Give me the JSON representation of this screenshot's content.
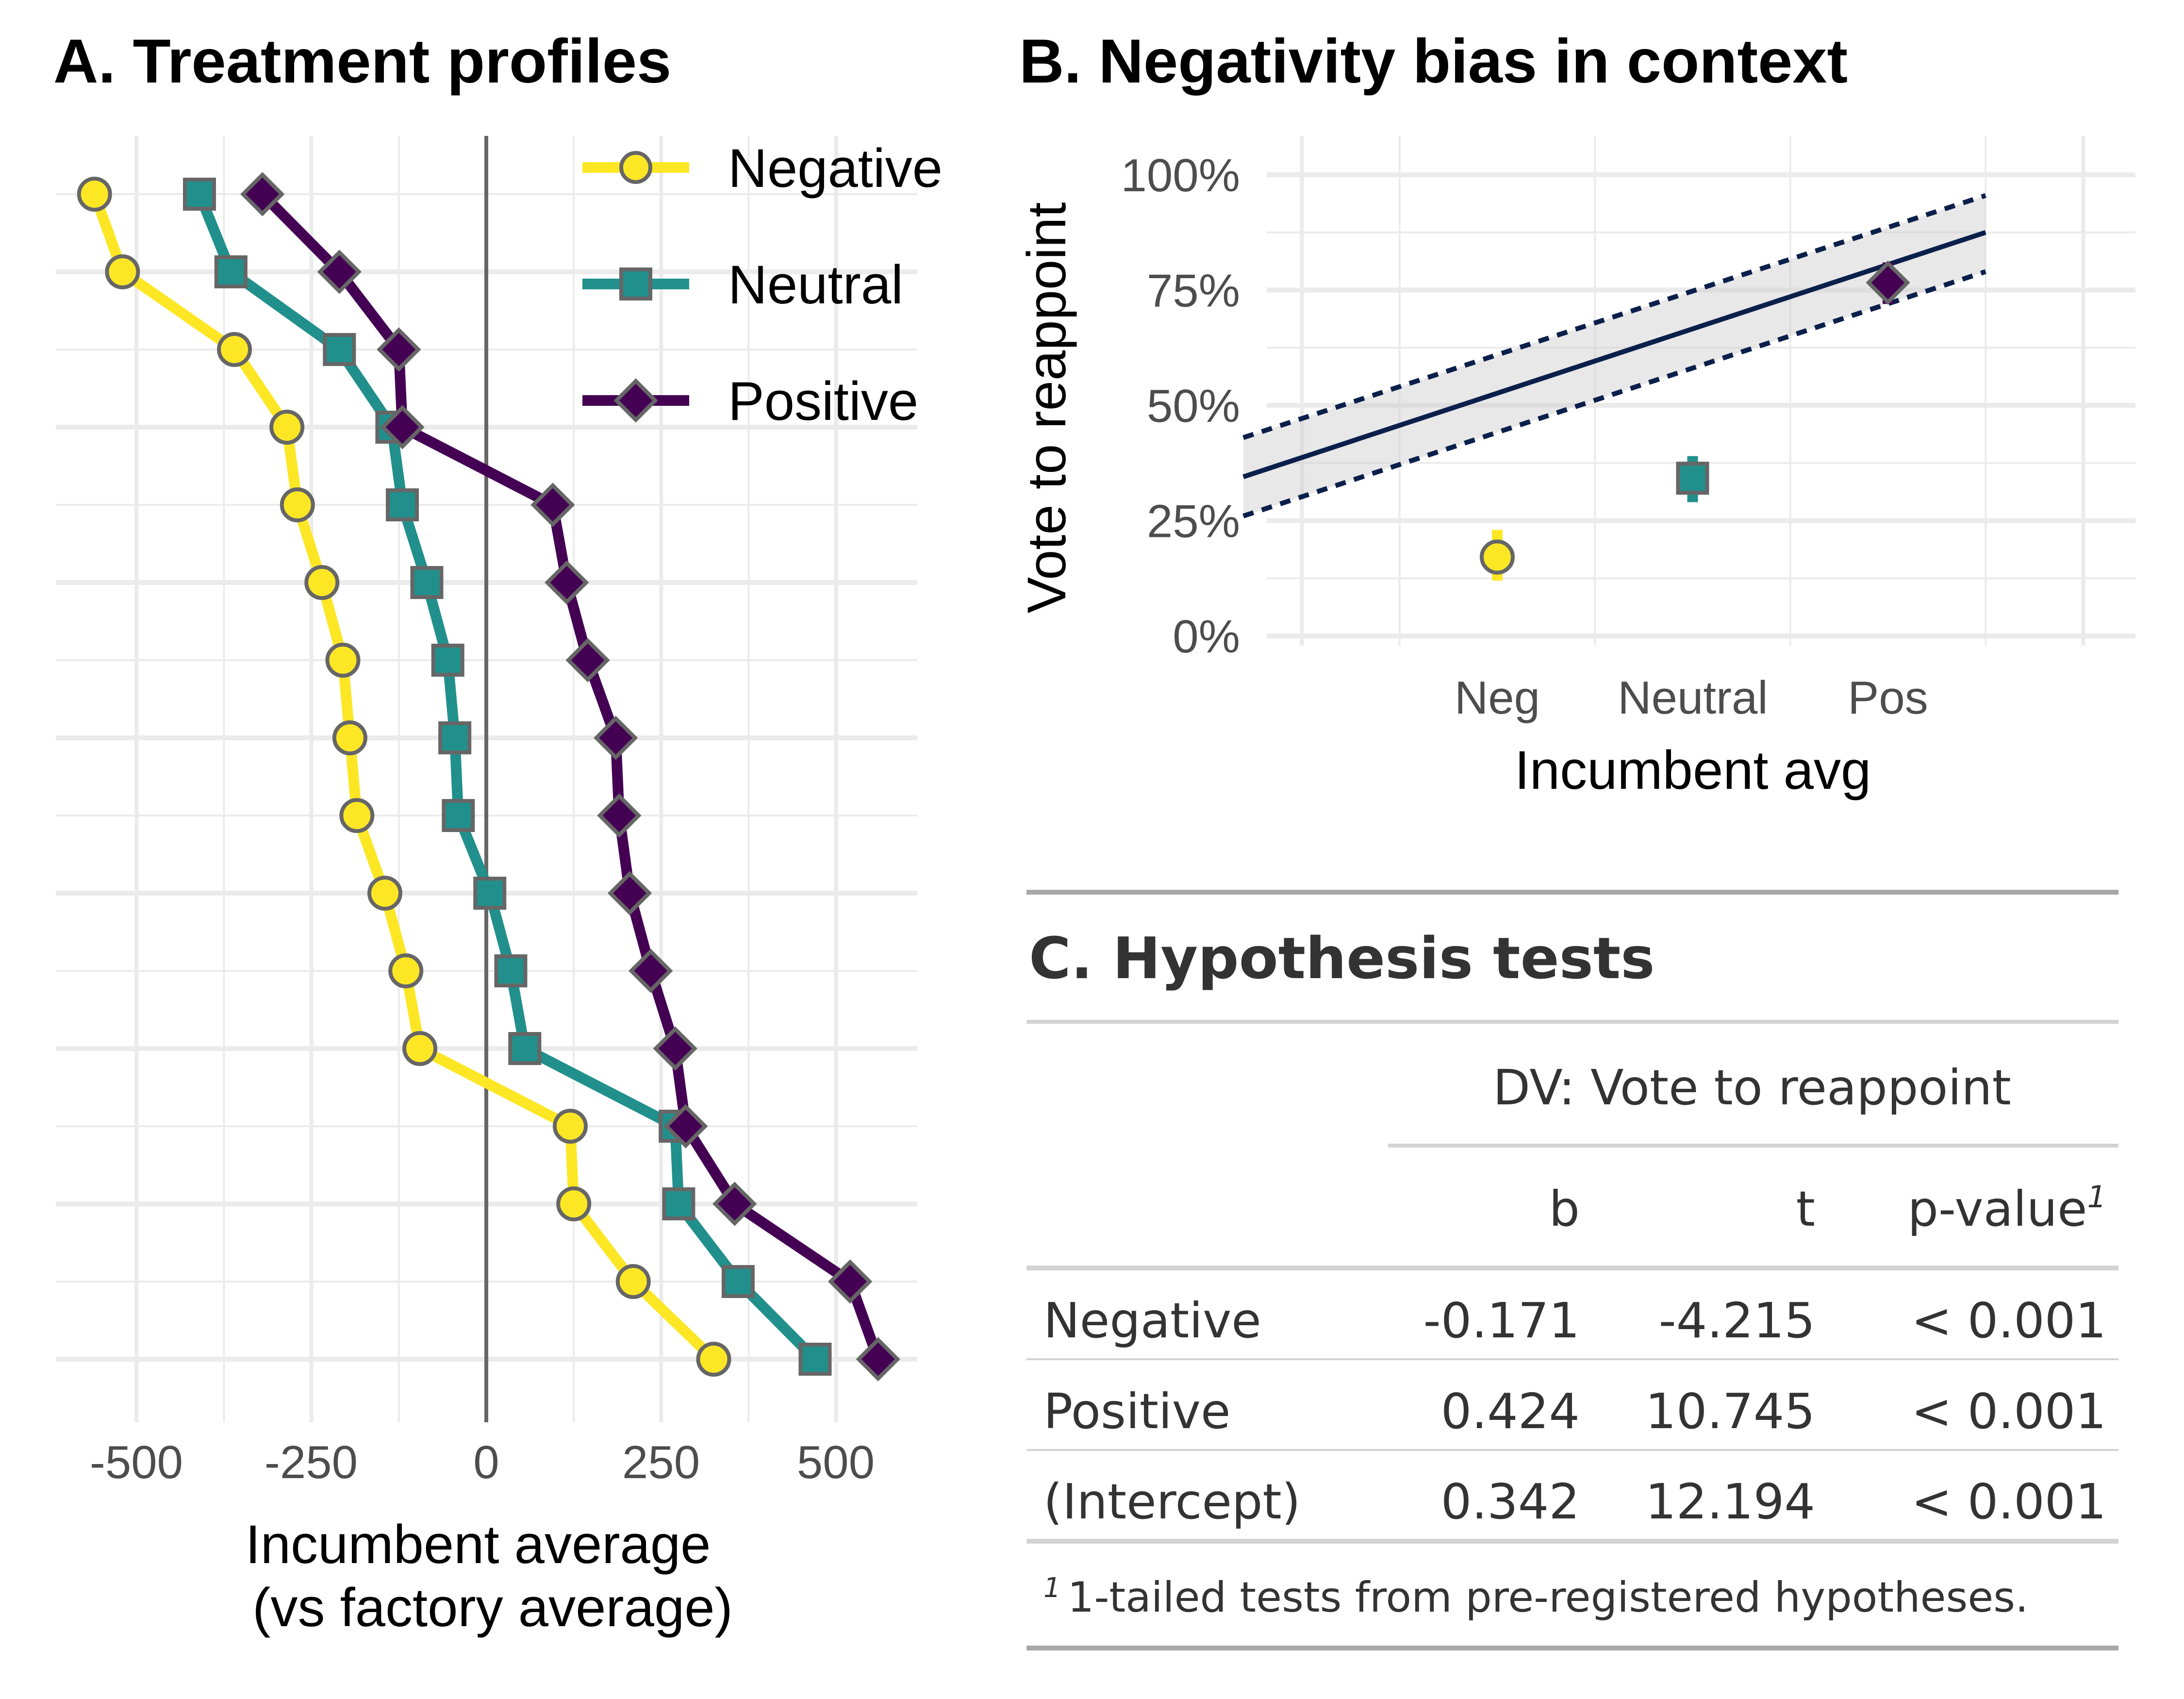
{
  "panel_a": {
    "title": "A. Treatment profiles",
    "xlabel_line1": "Incumbent average",
    "xlabel_line2": "(vs factory average)",
    "xticks": [
      "-500",
      "-250",
      "0",
      "250",
      "500"
    ],
    "legend": [
      "Negative",
      "Neutral",
      "Positive"
    ]
  },
  "panel_b": {
    "title": "B. Negativity bias in context",
    "ylabel": "Vote to reappoint",
    "xlabel": "Incumbent avg",
    "yticks": [
      "0%",
      "25%",
      "50%",
      "75%",
      "100%"
    ],
    "xticks": [
      "Neg",
      "Neutral",
      "Pos"
    ]
  },
  "panel_c": {
    "title": "C. Hypothesis tests",
    "spanner": "DV: Vote to reappoint",
    "col_b": "b",
    "col_t": "t",
    "col_p": "p-value",
    "footnote_mark": "1",
    "rows": [
      {
        "term": "Negative",
        "b": "-0.171",
        "t": "-4.215",
        "p": "< 0.001"
      },
      {
        "term": "Positive",
        "b": "0.424",
        "t": "10.745",
        "p": "< 0.001"
      },
      {
        "term": "(Intercept)",
        "b": "0.342",
        "t": "12.194",
        "p": "< 0.001"
      }
    ],
    "footnote": "1-tailed tests from pre-registered hypotheses."
  },
  "colors": {
    "negative": "#FDE725",
    "neutral": "#21908C",
    "positive": "#440154",
    "fit": "#0B1F4B",
    "grid": "#EBEBEB"
  },
  "chart_data": [
    {
      "type": "line",
      "title": "A. Treatment profiles",
      "xlabel": "Incumbent average\n(vs factory average)",
      "ylabel": "",
      "xlim": [
        -600,
        620
      ],
      "xticks": [
        -500,
        -250,
        0,
        250,
        500
      ],
      "legend": "top-right",
      "series": [
        {
          "name": "Negative",
          "marker": "circle",
          "values": [
            -560,
            -520,
            -360,
            -285,
            -270,
            -235,
            -205,
            -195,
            -185,
            -145,
            -115,
            -95,
            120,
            125,
            210,
            325
          ]
        },
        {
          "name": "Neutral",
          "marker": "square",
          "values": [
            -410,
            -365,
            -210,
            -135,
            -120,
            -85,
            -55,
            -45,
            -40,
            5,
            35,
            55,
            270,
            275,
            360,
            470
          ]
        },
        {
          "name": "Positive",
          "marker": "diamond",
          "values": [
            -320,
            -210,
            -125,
            -120,
            95,
            115,
            145,
            185,
            190,
            205,
            235,
            270,
            285,
            355,
            520,
            560
          ]
        }
      ]
    },
    {
      "type": "scatter",
      "title": "B. Negativity bias in context",
      "xlabel": "Incumbent avg",
      "ylabel": "Vote to reappoint",
      "ylim": [
        0,
        1.05
      ],
      "yticks": [
        "0%",
        "25%",
        "50%",
        "75%",
        "100%"
      ],
      "categories": [
        "Neg",
        "Neutral",
        "Pos"
      ],
      "points": [
        {
          "category": "Neg",
          "estimate": 0.171,
          "ci": [
            0.12,
            0.23
          ]
        },
        {
          "category": "Neutral",
          "estimate": 0.342,
          "ci": [
            0.29,
            0.39
          ]
        },
        {
          "category": "Pos",
          "estimate": 0.766,
          "ci": [
            0.72,
            0.81
          ]
        }
      ],
      "fit_line": {
        "x_range": [
          -1.3,
          2.5
        ],
        "estimate": [
          0.345,
          0.875
        ],
        "lower": [
          0.26,
          0.79
        ],
        "upper": [
          0.43,
          0.955
        ]
      }
    }
  ]
}
